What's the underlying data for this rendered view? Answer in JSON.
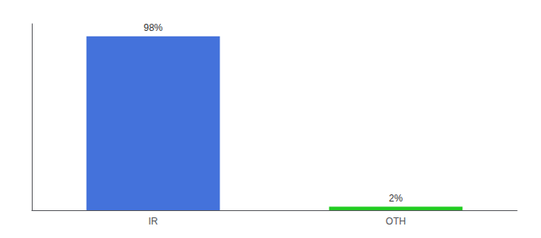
{
  "chart_data": {
    "type": "bar",
    "categories": [
      "IR",
      "OTH"
    ],
    "values": [
      98,
      2
    ],
    "value_labels": [
      "98%",
      "2%"
    ],
    "colors": [
      "#4472db",
      "#22cc22"
    ],
    "ylim": [
      0,
      105
    ],
    "data_labels": true,
    "tick_labels": "x",
    "grid": false
  }
}
